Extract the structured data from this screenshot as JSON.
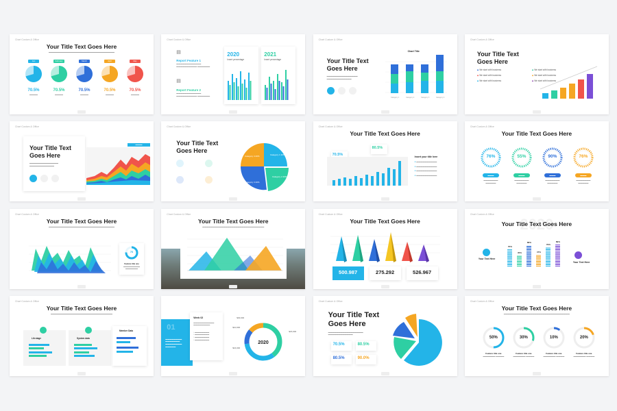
{
  "brand": "Chart Custom & Office",
  "slides": {
    "s1": {
      "title": "Your Title Text Goes Here",
      "pies": [
        {
          "label": "Jan",
          "value": "70.5%",
          "color": "#23b4e8",
          "frac": 0.705
        },
        {
          "label": "February",
          "value": "70.5%",
          "color": "#2ecfa3",
          "frac": 0.705
        },
        {
          "label": "March",
          "value": "70.5%",
          "color": "#2f6fd9",
          "frac": 0.705
        },
        {
          "label": "April",
          "value": "70.5%",
          "color": "#f5a623",
          "frac": 0.705
        },
        {
          "label": "May",
          "value": "70.5%",
          "color": "#f0544b",
          "frac": 0.705
        }
      ]
    },
    "s2": {
      "feature1": "Report Feature 1",
      "feature2": "Report Feature 2",
      "year1": "2020",
      "year2": "2021",
      "sub1": "Insert percentage",
      "sub2": "Insert percentage"
    },
    "s3": {
      "title": "Your Title Text Goes Here",
      "chart_title": "Chart Title"
    },
    "s4": {
      "title": "Your Title Text Goes Here",
      "bullet": "We start with business"
    },
    "s5": {
      "title": "Your Title Text Goes Here"
    },
    "s6": {
      "title": "Your Title Text Goes Here",
      "cat1": "Category 1 20%",
      "cat2": "Category 2 20%",
      "cat3": "Category 3 20%",
      "cat4": "Category 4 20%"
    },
    "s7": {
      "title": "Your Title Text Goes Here",
      "badge1": "70.5%",
      "badge2": "80.5%",
      "side_title": "Insert your title here"
    },
    "s8": {
      "title": "Your Title Text Goes Here",
      "rings": [
        {
          "value": "76%",
          "color": "#23b4e8"
        },
        {
          "value": "55%",
          "color": "#2ecfa3"
        },
        {
          "value": "90%",
          "color": "#2f6fd9"
        },
        {
          "value": "76%",
          "color": "#f5a623"
        }
      ]
    },
    "s9": {
      "title": "Your Title Text Goes Here",
      "gauge": "76",
      "gauge_label": "Feature title one"
    },
    "s10": {
      "title": "Your Title Text Goes Here"
    },
    "s11": {
      "title": "Your Title Text Goes Here",
      "stat1": "500.987",
      "stat2": "275.292",
      "stat3": "526.967"
    },
    "s12": {
      "title": "Your Title Text Goes Here",
      "bg_year": "2020",
      "left_label": "Your Text Here",
      "right_label": "Your Text Here",
      "percents": [
        "70%",
        "45%",
        "86%",
        "47%",
        "79%",
        "89%"
      ]
    },
    "s13": {
      "title": "Your Title Text Goes Here",
      "box1": "Lib stage",
      "box2": "System data",
      "box3": "Member Data"
    },
    "s14": {
      "card_title": "Week 02",
      "center": "2020",
      "v1": "$30,000",
      "v2": "$15,000",
      "v3": "$16,000",
      "v4": "$10,000"
    },
    "s15": {
      "title": "Your Title Text Goes Here",
      "v1": "70.5%",
      "v2": "80.5%",
      "v3": "80.5%",
      "v4": "90.0%"
    },
    "s16": {
      "title": "Your Title Text Goes Here",
      "donuts": [
        {
          "value": "50%",
          "color": "#23b4e8",
          "frac": 0.5,
          "label": "Feature title one"
        },
        {
          "value": "30%",
          "color": "#2ecfa3",
          "frac": 0.3,
          "label": "Feature title one"
        },
        {
          "value": "10%",
          "color": "#2f6fd9",
          "frac": 0.1,
          "label": "Feature title one"
        },
        {
          "value": "20%",
          "color": "#f5a623",
          "frac": 0.2,
          "label": "Feature title one"
        }
      ]
    }
  }
}
